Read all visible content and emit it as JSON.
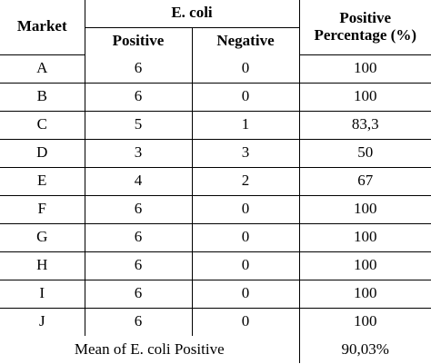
{
  "header": {
    "market": "Market",
    "ecoli": "E. coli",
    "positive": "Positive",
    "negative": "Negative",
    "percentage_line1": "Positive",
    "percentage_line2": "Percentage (%)"
  },
  "rows": [
    {
      "market": "A",
      "positive": "6",
      "negative": "0",
      "percentage": "100"
    },
    {
      "market": "B",
      "positive": "6",
      "negative": "0",
      "percentage": "100"
    },
    {
      "market": "C",
      "positive": "5",
      "negative": "1",
      "percentage": "83,3"
    },
    {
      "market": "D",
      "positive": "3",
      "negative": "3",
      "percentage": "50"
    },
    {
      "market": "E",
      "positive": "4",
      "negative": "2",
      "percentage": "67"
    },
    {
      "market": "F",
      "positive": "6",
      "negative": "0",
      "percentage": "100"
    },
    {
      "market": "G",
      "positive": "6",
      "negative": "0",
      "percentage": "100"
    },
    {
      "market": "H",
      "positive": "6",
      "negative": "0",
      "percentage": "100"
    },
    {
      "market": "I",
      "positive": "6",
      "negative": "0",
      "percentage": "100"
    },
    {
      "market": "J",
      "positive": "6",
      "negative": "0",
      "percentage": "100"
    }
  ],
  "footer": {
    "label": "Mean of E. coli Positive",
    "value": "90,03%"
  }
}
